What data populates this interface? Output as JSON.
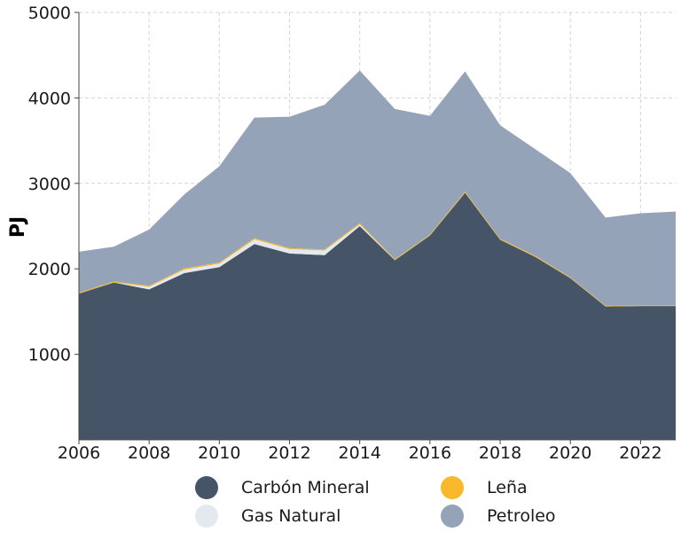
{
  "chart_data": {
    "type": "area",
    "stacked": true,
    "title": "",
    "xlabel": "",
    "ylabel": "PJ",
    "x": [
      2006,
      2007,
      2008,
      2009,
      2010,
      2011,
      2012,
      2013,
      2014,
      2015,
      2016,
      2017,
      2018,
      2019,
      2020,
      2021,
      2022,
      2023
    ],
    "xticks": [
      "2006",
      "2008",
      "2010",
      "2012",
      "2014",
      "2016",
      "2018",
      "2020",
      "2022"
    ],
    "yticks": [
      "1000",
      "2000",
      "3000",
      "4000",
      "5000"
    ],
    "xlim": [
      2006,
      2023
    ],
    "ylim": [
      0,
      5000
    ],
    "grid": true,
    "legend_position": "bottom",
    "series": [
      {
        "name": "Carbón Mineral",
        "color": "#465467",
        "values": [
          1710,
          1840,
          1760,
          1950,
          2020,
          2290,
          2180,
          2160,
          2500,
          2100,
          2390,
          2890,
          2340,
          2140,
          1890,
          1560,
          1565,
          1565
        ]
      },
      {
        "name": "Gas Natural",
        "color": "#e4e9f0",
        "values": [
          0,
          0,
          30,
          40,
          40,
          55,
          50,
          55,
          20,
          0,
          0,
          0,
          0,
          0,
          0,
          0,
          0,
          0
        ]
      },
      {
        "name": "Leña",
        "color": "#f7b92a",
        "values": [
          12,
          12,
          12,
          15,
          15,
          15,
          12,
          12,
          15,
          12,
          12,
          15,
          12,
          12,
          10,
          8,
          8,
          8
        ]
      },
      {
        "name": "Petroleo",
        "color": "#95a3b8",
        "values": [
          478,
          408,
          658,
          865,
          1125,
          1410,
          1538,
          1693,
          1785,
          1758,
          1388,
          1405,
          1328,
          1248,
          1220,
          1032,
          1077,
          1097
        ]
      }
    ]
  },
  "legend": {
    "items": [
      {
        "label": "Carbón Mineral",
        "color": "#465467"
      },
      {
        "label": "Leña",
        "color": "#f7b92a"
      },
      {
        "label": "Gas Natural",
        "color": "#e4e9f0"
      },
      {
        "label": "Petroleo",
        "color": "#95a3b8"
      }
    ]
  }
}
